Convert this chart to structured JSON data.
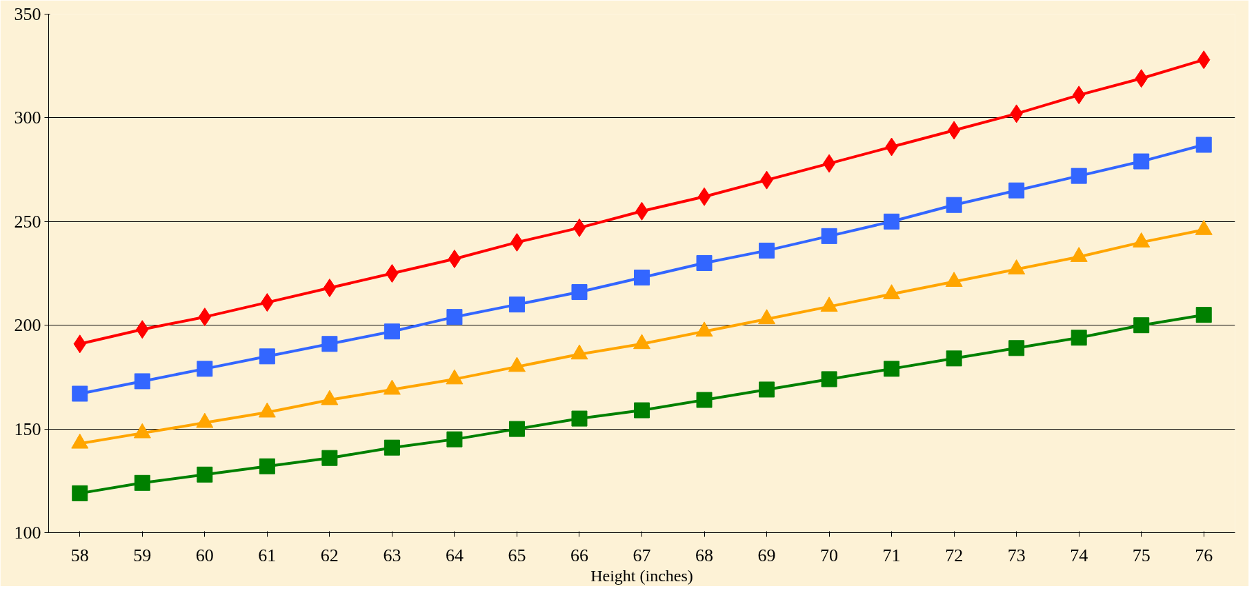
{
  "chart_data": {
    "type": "line",
    "xlabel": "Height (inches)",
    "categories": [
      "58",
      "59",
      "60",
      "61",
      "62",
      "63",
      "64",
      "65",
      "66",
      "67",
      "68",
      "69",
      "70",
      "71",
      "72",
      "73",
      "74",
      "75",
      "76"
    ],
    "series": [
      {
        "color": "#ff0000",
        "marker": "diamond",
        "values": [
          191,
          198,
          204,
          211,
          218,
          225,
          232,
          240,
          247,
          255,
          262,
          270,
          278,
          286,
          294,
          302,
          311,
          319,
          328
        ]
      },
      {
        "color": "#3366ff",
        "marker": "square",
        "values": [
          167,
          173,
          179,
          185,
          191,
          197,
          204,
          210,
          216,
          223,
          230,
          236,
          243,
          250,
          258,
          265,
          272,
          279,
          287
        ]
      },
      {
        "color": "#ffa500",
        "marker": "triangle",
        "values": [
          143,
          148,
          153,
          158,
          164,
          169,
          174,
          180,
          186,
          191,
          197,
          203,
          209,
          215,
          221,
          227,
          233,
          240,
          246
        ]
      },
      {
        "color": "#008000",
        "marker": "square",
        "values": [
          119,
          124,
          128,
          132,
          136,
          141,
          145,
          150,
          155,
          159,
          164,
          169,
          174,
          179,
          184,
          189,
          194,
          200,
          205
        ]
      }
    ],
    "ylim": [
      100,
      350
    ],
    "yticks": [
      100,
      150,
      200,
      250,
      300,
      350
    ],
    "grid": "y"
  }
}
